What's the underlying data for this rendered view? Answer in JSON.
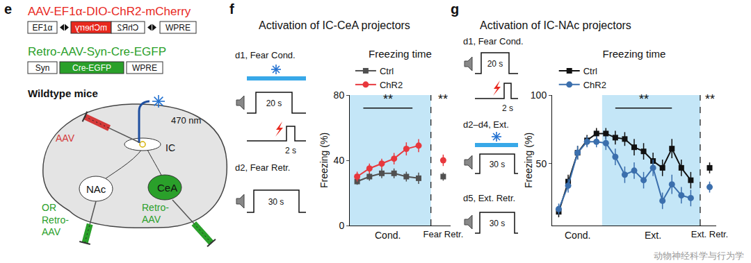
{
  "panels": {
    "e": {
      "label": "e",
      "vector_1": {
        "name": "AAV-EF1α-DIO-ChR2-mCherry",
        "elements": [
          "EF1α",
          "mCherry",
          "ChR2",
          "WPRE"
        ]
      },
      "vector_2": {
        "name": "Retro-AAV-Syn-Cre-EGFP",
        "elements": [
          "Syn",
          "Cre-EGFP",
          "WPRE"
        ]
      },
      "animal": "Wildtype mice",
      "light": "470 nm",
      "injection": "AAV",
      "regions": [
        "IC",
        "NAc",
        "CeA"
      ],
      "or": "OR",
      "retro_injections": [
        "Retro-AAV",
        "Retro-AAV"
      ]
    },
    "f": {
      "label": "f",
      "title": "Activation of IC-CeA projectors",
      "protocol": [
        {
          "day": "d1, Fear Cond.",
          "tone": "20 s",
          "shock": "2 s"
        },
        {
          "day": "d2, Fear Retr.",
          "tone": "30 s"
        }
      ]
    },
    "g": {
      "label": "g",
      "title": "Activation of IC-NAc projectors",
      "protocol": [
        {
          "day": "d1, Fear Cond.",
          "tone": "20 s",
          "shock": "2 s"
        },
        {
          "day": "d2–d4, Ext.",
          "tone": "30 s"
        },
        {
          "day": "d5, Ext. Retr.",
          "tone": "30 s"
        }
      ]
    }
  },
  "chart_data": [
    {
      "type": "line",
      "title": "Freezing time",
      "y_label": "Freezing (%)",
      "categories": [
        null,
        null,
        null,
        null,
        null,
        null,
        null,
        "Fear Retr."
      ],
      "ylim": [
        0,
        80
      ],
      "yticks": [
        0,
        40,
        80
      ],
      "legend": "top left",
      "annotations": [
        "Cond.",
        "**",
        "**"
      ],
      "series": [
        {
          "name": "Ctrl",
          "color": "#505050",
          "marker": "square",
          "values": [
            27,
            30,
            32,
            32,
            30,
            29,
            null,
            30
          ],
          "errors": [
            2,
            2.5,
            3,
            3,
            3,
            3.5,
            null,
            2.5
          ]
        },
        {
          "name": "ChR2",
          "color": "#e8383d",
          "marker": "circle",
          "values": [
            30,
            35,
            38,
            41,
            47,
            49,
            null,
            40
          ],
          "errors": [
            3,
            3,
            3,
            3.5,
            4,
            4,
            null,
            3.5
          ]
        }
      ]
    },
    {
      "type": "line",
      "title": "Freezing time",
      "y_label": "Freezing (%)",
      "categories": [
        null,
        null,
        null,
        null,
        null,
        null,
        null,
        null,
        null,
        null,
        null,
        null,
        null,
        null,
        null,
        null,
        "Ext. Retr."
      ],
      "ylim": [
        5,
        100
      ],
      "yticks": [
        50,
        100
      ],
      "legend": "top left",
      "annotations": [
        "Cond.",
        "Ext.",
        "**",
        "**"
      ],
      "series": [
        {
          "name": "Ctrl",
          "color": "#111111",
          "marker": "square",
          "values": [
            15,
            37,
            58,
            67,
            72,
            72,
            69,
            68,
            62,
            59,
            52,
            47,
            61,
            47,
            38,
            null,
            47
          ],
          "errors": [
            4,
            5,
            5,
            4,
            4,
            4,
            5,
            5,
            6,
            6,
            6,
            6,
            7,
            6,
            6,
            null,
            4
          ]
        },
        {
          "name": "ChR2",
          "color": "#3b6fad",
          "marker": "circle",
          "values": [
            17,
            34,
            58,
            66,
            66,
            65,
            55,
            42,
            45,
            38,
            47,
            23,
            35,
            27,
            25,
            null,
            33
          ],
          "errors": [
            4,
            5,
            5,
            4,
            4,
            5,
            6,
            6,
            6,
            6,
            6,
            6,
            7,
            6,
            6,
            null,
            4
          ]
        }
      ]
    }
  ],
  "watermark": "动物神经科学与行为学"
}
